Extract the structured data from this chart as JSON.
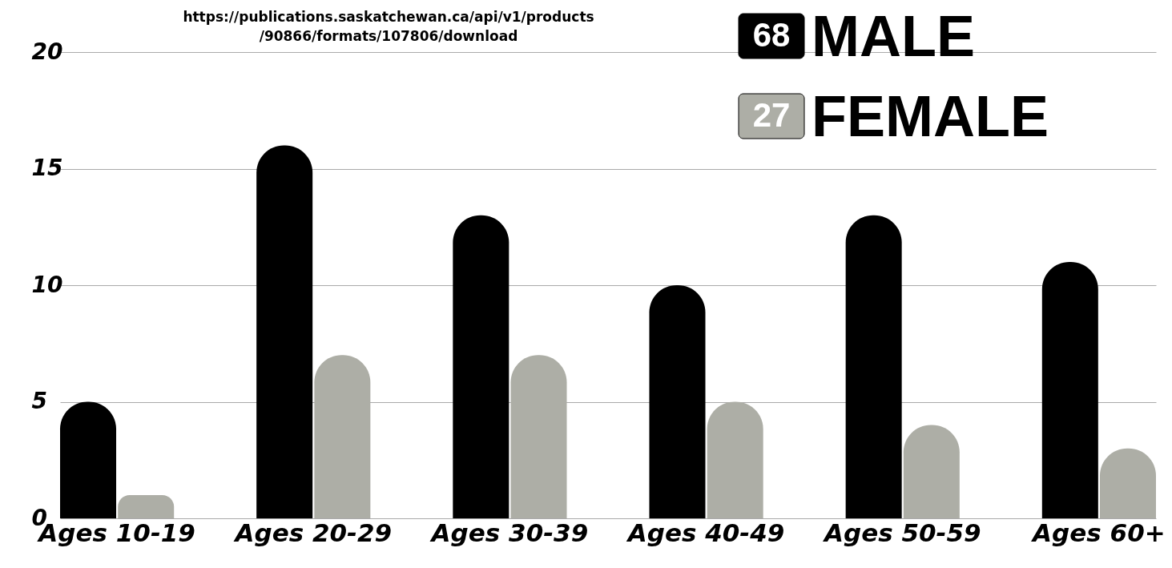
{
  "chart_data": {
    "type": "bar",
    "categories": [
      "Ages 10-19",
      "Ages 20-29",
      "Ages 30-39",
      "Ages 40-49",
      "Ages 50-59",
      "Ages 60+"
    ],
    "series": [
      {
        "name": "MALE",
        "color": "#000000",
        "values": [
          5,
          16,
          13,
          10,
          13,
          11
        ]
      },
      {
        "name": "FEMALE",
        "color": "#adaea6",
        "values": [
          1,
          7,
          7,
          5,
          4,
          3
        ]
      }
    ],
    "ylim": [
      0,
      20
    ],
    "yticks": [
      0,
      5,
      10,
      15,
      20
    ],
    "grid": "y",
    "legend": "top right",
    "annotations": [
      "https://publications.saskatchewan.ca/api/v1/products/90866/formats/107806/download",
      "68",
      "27"
    ]
  }
}
